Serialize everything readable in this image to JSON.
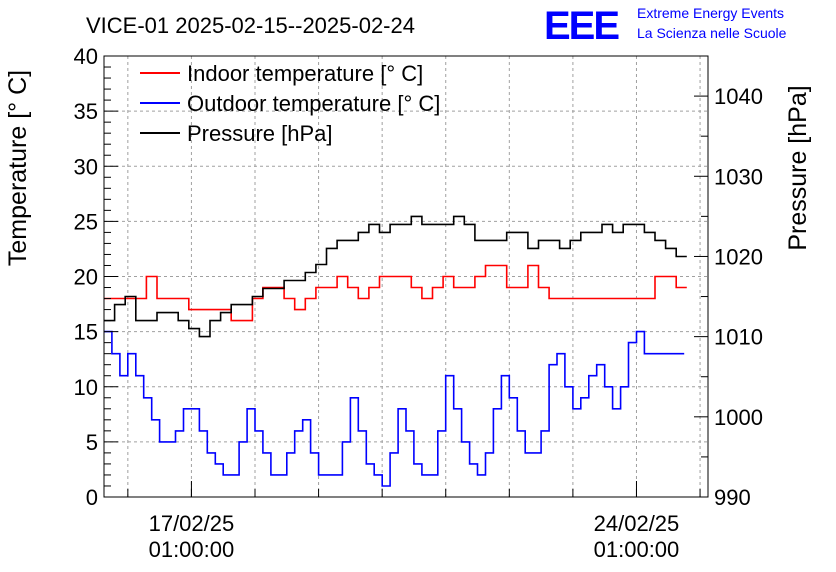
{
  "chart_data": {
    "type": "line",
    "title": "VICE-01 2025-02-15--2025-02-24",
    "logo": {
      "letters": "EEE",
      "line1": "Extreme Energy Events",
      "line2": "La Scienza nelle Scuole"
    },
    "ylabel": "Temperature [° C]",
    "y2label": "Pressure [hPa]",
    "ylim": [
      0,
      40
    ],
    "y2lim": [
      990,
      1045
    ],
    "xlim": [
      "2025-02-15T16:00:00",
      "2025-02-25T04:00:00"
    ],
    "grid": true,
    "legend_position": "top-left",
    "y_ticks": [
      "0",
      "5",
      "10",
      "15",
      "20",
      "25",
      "30",
      "35",
      "40"
    ],
    "y2_ticks": [
      "990",
      "1000",
      "1010",
      "1020",
      "1030",
      "1040"
    ],
    "x_ticks": [
      {
        "at": "2025-02-17T01:00:00",
        "date": "17/02/25",
        "time": "01:00:00"
      },
      {
        "at": "2025-02-24T01:00:00",
        "date": "24/02/25",
        "time": "01:00:00"
      }
    ],
    "colors": {
      "indoor": "#ff0000",
      "outdoor": "#0000ff",
      "pressure": "#000000",
      "logo": "#0000ff"
    },
    "series": [
      {
        "name": "Indoor temperature [° C]",
        "axis": "left",
        "x": [
          "2025-02-15T16:00",
          "2025-02-15T20:00",
          "2025-02-16T00:00",
          "2025-02-16T04:00",
          "2025-02-16T08:00",
          "2025-02-16T12:00",
          "2025-02-16T16:00",
          "2025-02-16T20:00",
          "2025-02-17T00:00",
          "2025-02-17T04:00",
          "2025-02-17T08:00",
          "2025-02-17T12:00",
          "2025-02-17T16:00",
          "2025-02-17T20:00",
          "2025-02-18T00:00",
          "2025-02-18T04:00",
          "2025-02-18T08:00",
          "2025-02-18T12:00",
          "2025-02-18T16:00",
          "2025-02-18T20:00",
          "2025-02-19T00:00",
          "2025-02-19T04:00",
          "2025-02-19T08:00",
          "2025-02-19T12:00",
          "2025-02-19T16:00",
          "2025-02-19T20:00",
          "2025-02-20T00:00",
          "2025-02-20T04:00",
          "2025-02-20T08:00",
          "2025-02-20T12:00",
          "2025-02-20T16:00",
          "2025-02-20T20:00",
          "2025-02-21T00:00",
          "2025-02-21T04:00",
          "2025-02-21T08:00",
          "2025-02-21T12:00",
          "2025-02-21T16:00",
          "2025-02-21T20:00",
          "2025-02-22T00:00",
          "2025-02-22T04:00",
          "2025-02-22T08:00",
          "2025-02-22T12:00",
          "2025-02-22T16:00",
          "2025-02-22T20:00",
          "2025-02-23T00:00",
          "2025-02-23T04:00",
          "2025-02-23T08:00",
          "2025-02-23T12:00",
          "2025-02-23T16:00",
          "2025-02-23T20:00",
          "2025-02-24T00:00",
          "2025-02-24T04:00",
          "2025-02-24T08:00",
          "2025-02-24T12:00",
          "2025-02-24T16:00",
          "2025-02-24T20:00"
        ],
        "values": [
          18,
          18,
          18,
          18,
          20,
          18,
          18,
          18,
          17,
          17,
          17,
          17,
          16,
          16,
          18,
          19,
          19,
          18,
          17,
          18,
          19,
          19,
          20,
          19,
          18,
          19,
          20,
          20,
          20,
          19,
          18,
          19,
          20,
          19,
          19,
          20,
          21,
          21,
          19,
          19,
          21,
          19,
          18,
          18,
          18,
          18,
          18,
          18,
          18,
          18,
          18,
          18,
          20,
          20,
          19,
          19
        ]
      },
      {
        "name": "Outdoor temperature [° C]",
        "axis": "left",
        "x": [
          "2025-02-15T16:00",
          "2025-02-15T19:00",
          "2025-02-15T22:00",
          "2025-02-16T01:00",
          "2025-02-16T04:00",
          "2025-02-16T07:00",
          "2025-02-16T10:00",
          "2025-02-16T13:00",
          "2025-02-16T16:00",
          "2025-02-16T19:00",
          "2025-02-16T22:00",
          "2025-02-17T01:00",
          "2025-02-17T04:00",
          "2025-02-17T07:00",
          "2025-02-17T10:00",
          "2025-02-17T13:00",
          "2025-02-17T16:00",
          "2025-02-17T19:00",
          "2025-02-17T22:00",
          "2025-02-18T01:00",
          "2025-02-18T04:00",
          "2025-02-18T07:00",
          "2025-02-18T10:00",
          "2025-02-18T13:00",
          "2025-02-18T16:00",
          "2025-02-18T19:00",
          "2025-02-18T22:00",
          "2025-02-19T01:00",
          "2025-02-19T04:00",
          "2025-02-19T07:00",
          "2025-02-19T10:00",
          "2025-02-19T13:00",
          "2025-02-19T16:00",
          "2025-02-19T19:00",
          "2025-02-19T22:00",
          "2025-02-20T01:00",
          "2025-02-20T04:00",
          "2025-02-20T07:00",
          "2025-02-20T10:00",
          "2025-02-20T13:00",
          "2025-02-20T16:00",
          "2025-02-20T19:00",
          "2025-02-20T22:00",
          "2025-02-21T01:00",
          "2025-02-21T04:00",
          "2025-02-21T07:00",
          "2025-02-21T10:00",
          "2025-02-21T13:00",
          "2025-02-21T16:00",
          "2025-02-21T19:00",
          "2025-02-21T22:00",
          "2025-02-22T01:00",
          "2025-02-22T04:00",
          "2025-02-22T07:00",
          "2025-02-22T10:00",
          "2025-02-22T13:00",
          "2025-02-22T16:00",
          "2025-02-22T19:00",
          "2025-02-22T22:00",
          "2025-02-23T01:00",
          "2025-02-23T04:00",
          "2025-02-23T07:00",
          "2025-02-23T10:00",
          "2025-02-23T13:00",
          "2025-02-23T16:00",
          "2025-02-23T19:00",
          "2025-02-23T22:00",
          "2025-02-24T01:00",
          "2025-02-24T04:00",
          "2025-02-24T07:00",
          "2025-02-24T10:00",
          "2025-02-24T13:00",
          "2025-02-24T16:00",
          "2025-02-24T19:00"
        ],
        "values": [
          15,
          13,
          11,
          13,
          11,
          9,
          7,
          5,
          5,
          6,
          8,
          8,
          6,
          4,
          3,
          2,
          2,
          5,
          8,
          6,
          4,
          2,
          2,
          4,
          6,
          7,
          4,
          2,
          2,
          2,
          5,
          9,
          6,
          3,
          2,
          1,
          4,
          8,
          6,
          3,
          2,
          2,
          6,
          11,
          8,
          5,
          3,
          2,
          4,
          8,
          11,
          9,
          6,
          4,
          4,
          6,
          12,
          13,
          10,
          8,
          9,
          11,
          12,
          10,
          8,
          10,
          14,
          15,
          13,
          13,
          13,
          13,
          13,
          13
        ]
      },
      {
        "name": "Pressure [hPa]",
        "axis": "right",
        "x": [
          "2025-02-15T16:00",
          "2025-02-15T20:00",
          "2025-02-16T00:00",
          "2025-02-16T04:00",
          "2025-02-16T08:00",
          "2025-02-16T12:00",
          "2025-02-16T16:00",
          "2025-02-16T20:00",
          "2025-02-17T00:00",
          "2025-02-17T04:00",
          "2025-02-17T08:00",
          "2025-02-17T12:00",
          "2025-02-17T16:00",
          "2025-02-17T20:00",
          "2025-02-18T00:00",
          "2025-02-18T04:00",
          "2025-02-18T08:00",
          "2025-02-18T12:00",
          "2025-02-18T16:00",
          "2025-02-18T20:00",
          "2025-02-19T00:00",
          "2025-02-19T04:00",
          "2025-02-19T08:00",
          "2025-02-19T12:00",
          "2025-02-19T16:00",
          "2025-02-19T20:00",
          "2025-02-20T00:00",
          "2025-02-20T04:00",
          "2025-02-20T08:00",
          "2025-02-20T12:00",
          "2025-02-20T16:00",
          "2025-02-20T20:00",
          "2025-02-21T00:00",
          "2025-02-21T04:00",
          "2025-02-21T08:00",
          "2025-02-21T12:00",
          "2025-02-21T16:00",
          "2025-02-21T20:00",
          "2025-02-22T00:00",
          "2025-02-22T04:00",
          "2025-02-22T08:00",
          "2025-02-22T12:00",
          "2025-02-22T16:00",
          "2025-02-22T20:00",
          "2025-02-23T00:00",
          "2025-02-23T04:00",
          "2025-02-23T08:00",
          "2025-02-23T12:00",
          "2025-02-23T16:00",
          "2025-02-23T20:00",
          "2025-02-24T00:00",
          "2025-02-24T04:00",
          "2025-02-24T08:00",
          "2025-02-24T12:00",
          "2025-02-24T16:00",
          "2025-02-24T20:00"
        ],
        "values": [
          1012,
          1014,
          1015,
          1012,
          1012,
          1013,
          1013,
          1012,
          1011,
          1010,
          1012,
          1013,
          1014,
          1014,
          1015,
          1016,
          1016,
          1017,
          1017,
          1018,
          1019,
          1021,
          1022,
          1022,
          1023,
          1024,
          1023,
          1024,
          1024,
          1025,
          1024,
          1024,
          1024,
          1025,
          1024,
          1022,
          1022,
          1022,
          1023,
          1023,
          1021,
          1022,
          1022,
          1021,
          1022,
          1023,
          1023,
          1024,
          1023,
          1024,
          1024,
          1023,
          1022,
          1021,
          1020,
          1020
        ]
      }
    ]
  }
}
